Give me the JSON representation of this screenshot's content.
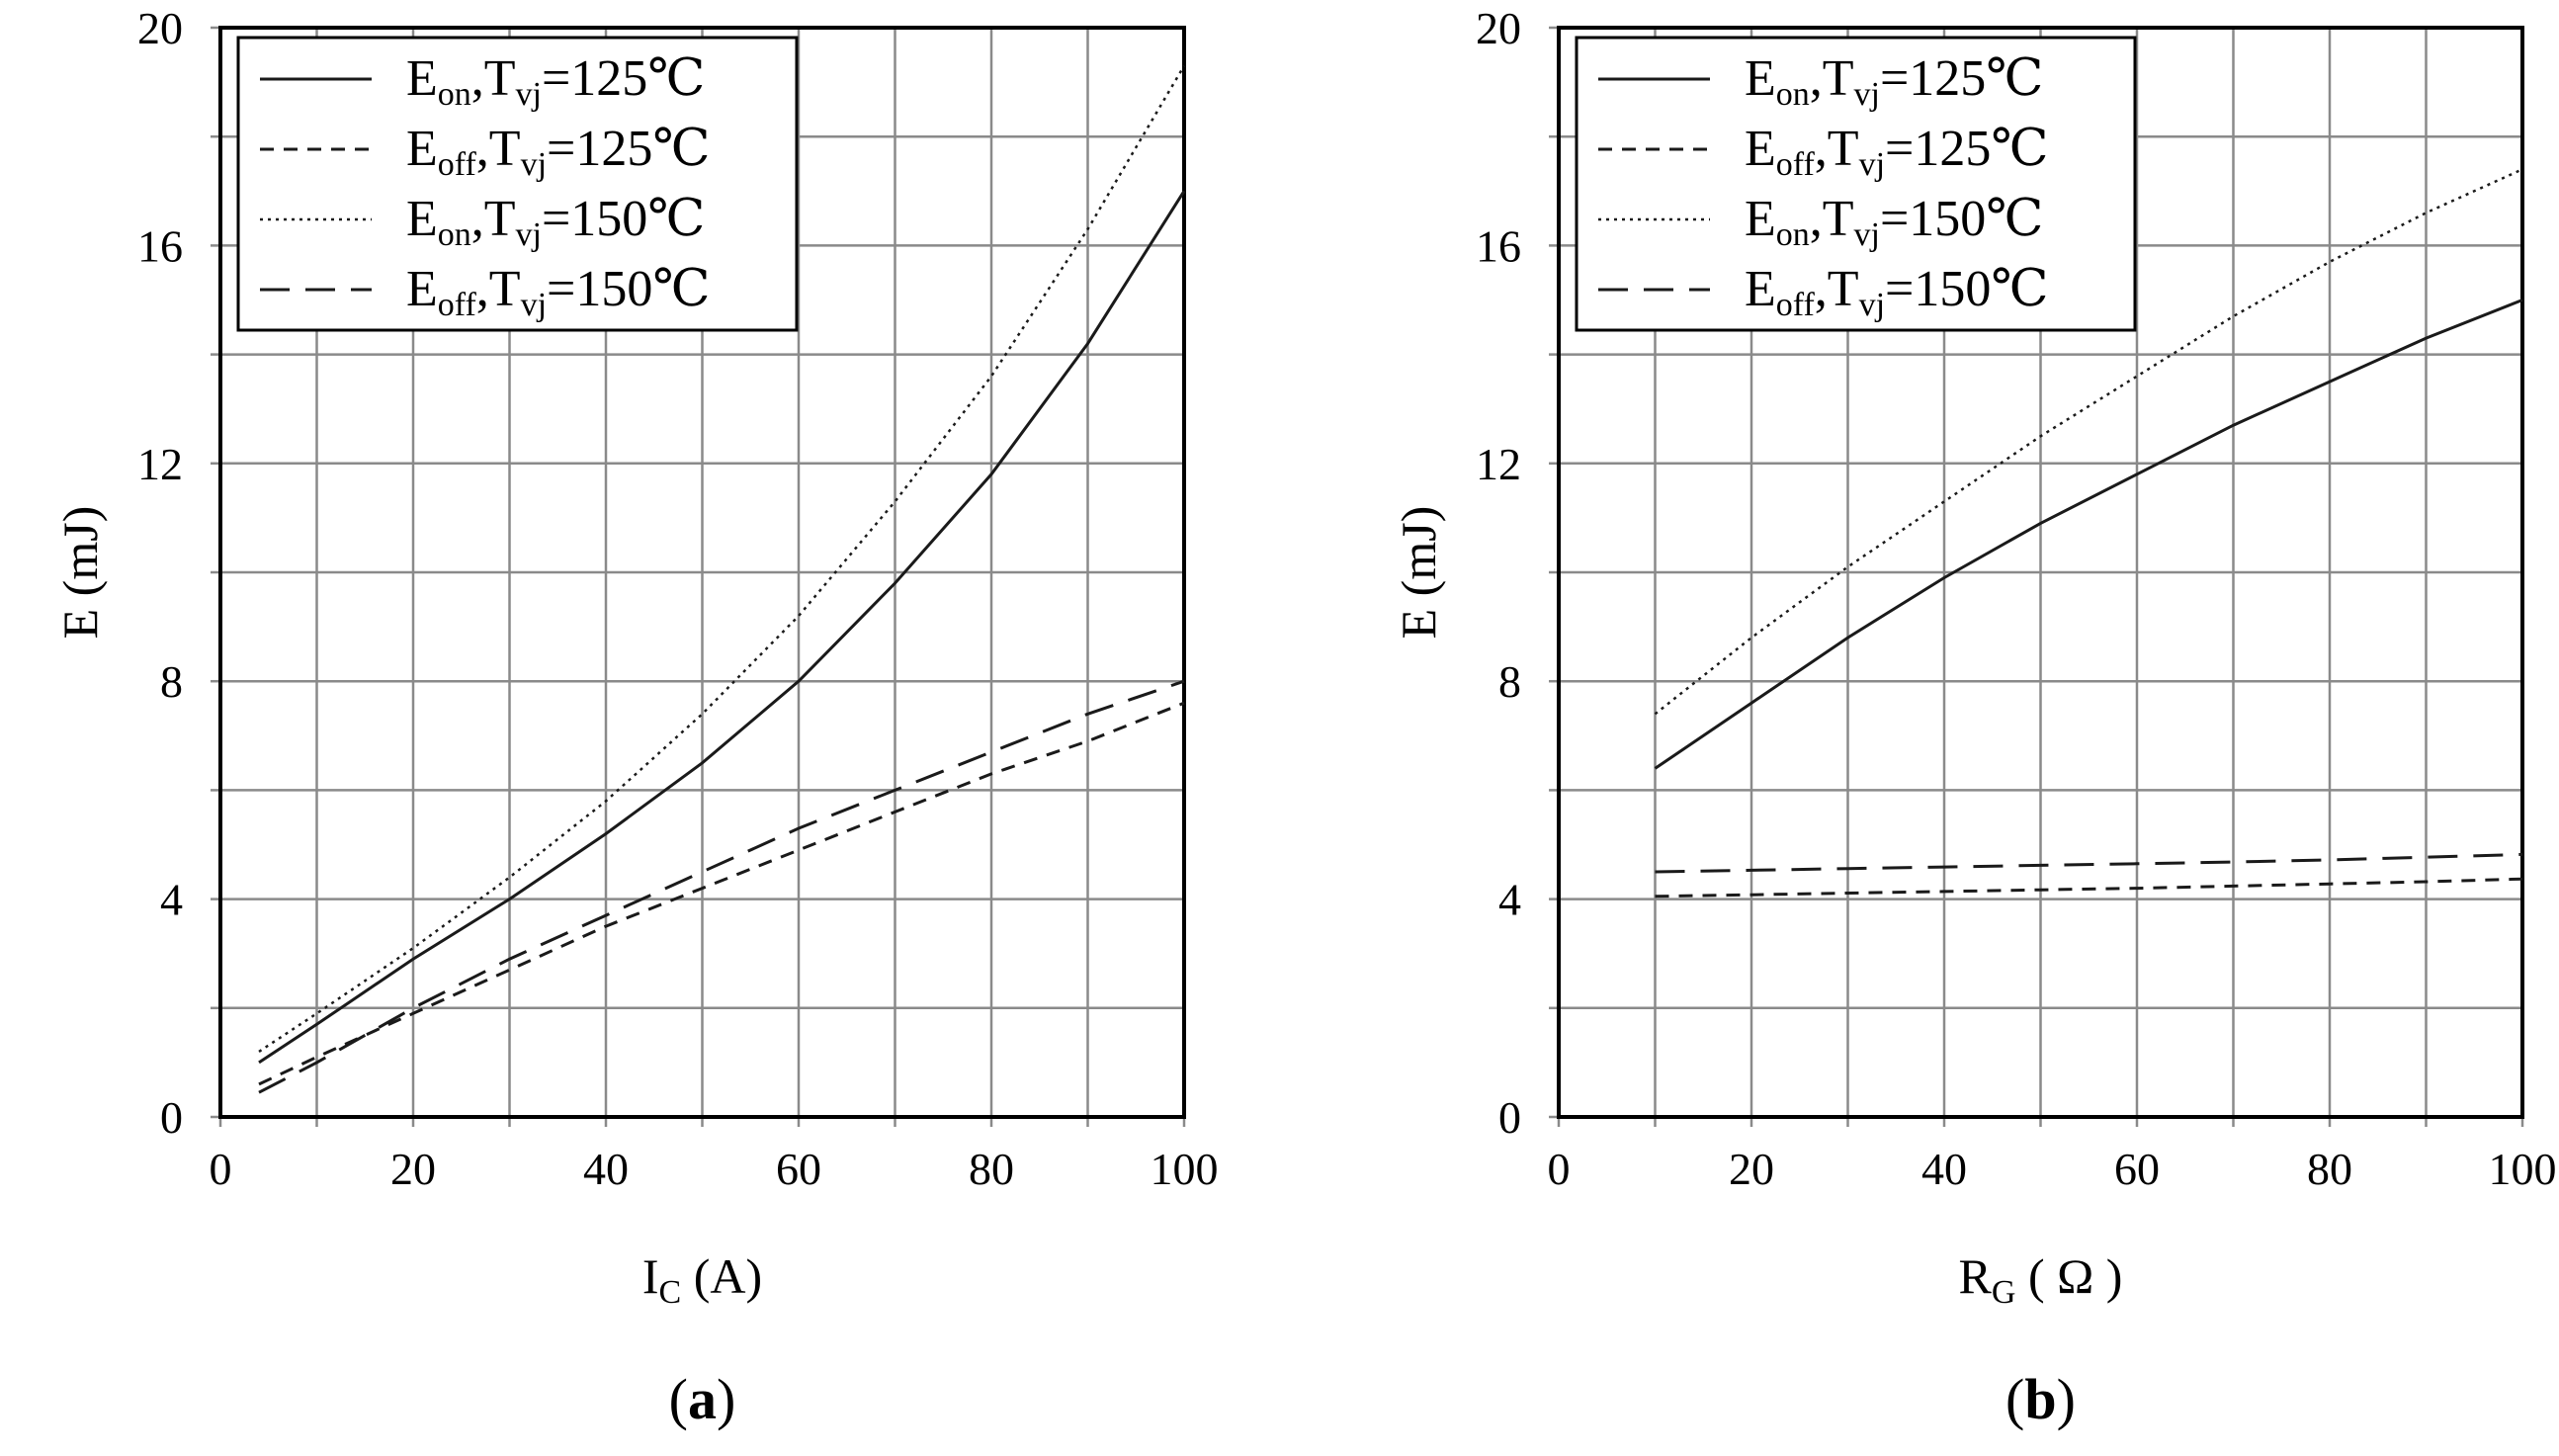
{
  "chart_data": [
    {
      "type": "line",
      "panel_label": "(a)",
      "panel_letter": "a",
      "xlabel": {
        "main": "I",
        "sub": "C",
        "rest": " (A)"
      },
      "ylabel": "E (mJ)",
      "xlim": [
        0,
        100
      ],
      "ylim": [
        0,
        20
      ],
      "xticks": [
        0,
        20,
        40,
        60,
        80,
        100
      ],
      "yticks": [
        0,
        4,
        8,
        12,
        16,
        20
      ],
      "grid": true,
      "legend_position": "top-left",
      "series": [
        {
          "name": "Eon,Tvj=125℃",
          "legend": {
            "e_sub": "on",
            "tvj": "125℃"
          },
          "style": "solid",
          "x": [
            4,
            10,
            20,
            30,
            40,
            50,
            60,
            70,
            80,
            90,
            100
          ],
          "y": [
            1.0,
            1.7,
            2.9,
            4.0,
            5.2,
            6.5,
            8.0,
            9.8,
            11.8,
            14.2,
            17.0
          ]
        },
        {
          "name": "Eoff,Tvj=125℃",
          "legend": {
            "e_sub": "off",
            "tvj": "125℃"
          },
          "style": "dashed-short",
          "x": [
            4,
            10,
            20,
            30,
            40,
            50,
            60,
            70,
            80,
            90,
            100
          ],
          "y": [
            0.6,
            1.1,
            1.9,
            2.7,
            3.5,
            4.2,
            4.9,
            5.6,
            6.3,
            6.9,
            7.6
          ]
        },
        {
          "name": "Eon,Tvj=150℃",
          "legend": {
            "e_sub": "on",
            "tvj": "150℃"
          },
          "style": "dotted",
          "x": [
            4,
            10,
            20,
            30,
            40,
            50,
            60,
            70,
            80,
            90,
            100
          ],
          "y": [
            1.2,
            1.9,
            3.1,
            4.4,
            5.8,
            7.4,
            9.2,
            11.3,
            13.6,
            16.3,
            19.3
          ]
        },
        {
          "name": "Eoff,Tvj=150℃",
          "legend": {
            "e_sub": "off",
            "tvj": "150℃"
          },
          "style": "dashed-long",
          "x": [
            4,
            10,
            20,
            30,
            40,
            50,
            60,
            70,
            80,
            90,
            100
          ],
          "y": [
            0.45,
            1.0,
            2.0,
            2.9,
            3.7,
            4.5,
            5.3,
            6.0,
            6.7,
            7.4,
            8.0
          ]
        }
      ]
    },
    {
      "type": "line",
      "panel_label": "(b)",
      "panel_letter": "b",
      "xlabel": {
        "main": "R",
        "sub": "G",
        "rest": " ( Ω )"
      },
      "ylabel": "E (mJ)",
      "xlim": [
        0,
        100
      ],
      "ylim": [
        0,
        20
      ],
      "xticks": [
        0,
        20,
        40,
        60,
        80,
        100
      ],
      "yticks": [
        0,
        4,
        8,
        12,
        16,
        20
      ],
      "grid": true,
      "legend_position": "top-left",
      "series": [
        {
          "name": "Eon,Tvj=125℃",
          "legend": {
            "e_sub": "on",
            "tvj": "125℃"
          },
          "style": "solid",
          "x": [
            10,
            20,
            30,
            40,
            50,
            60,
            70,
            80,
            90,
            100
          ],
          "y": [
            6.4,
            7.6,
            8.8,
            9.9,
            10.9,
            11.8,
            12.7,
            13.5,
            14.3,
            15.0
          ]
        },
        {
          "name": "Eoff,Tvj=125℃",
          "legend": {
            "e_sub": "off",
            "tvj": "125℃"
          },
          "style": "dashed-short",
          "x": [
            10,
            20,
            30,
            40,
            50,
            60,
            70,
            80,
            90,
            100
          ],
          "y": [
            4.05,
            4.08,
            4.11,
            4.14,
            4.17,
            4.2,
            4.24,
            4.28,
            4.32,
            4.37
          ]
        },
        {
          "name": "Eon,Tvj=150℃",
          "legend": {
            "e_sub": "on",
            "tvj": "150℃"
          },
          "style": "dotted",
          "x": [
            10,
            20,
            30,
            40,
            50,
            60,
            70,
            80,
            90,
            100
          ],
          "y": [
            7.4,
            8.8,
            10.1,
            11.3,
            12.5,
            13.6,
            14.7,
            15.7,
            16.6,
            17.4
          ]
        },
        {
          "name": "Eoff,Tvj=150℃",
          "legend": {
            "e_sub": "off",
            "tvj": "150℃"
          },
          "style": "dashed-long",
          "x": [
            10,
            20,
            30,
            40,
            50,
            60,
            70,
            80,
            90,
            100
          ],
          "y": [
            4.5,
            4.53,
            4.56,
            4.59,
            4.62,
            4.65,
            4.68,
            4.72,
            4.77,
            4.82
          ]
        }
      ]
    }
  ]
}
